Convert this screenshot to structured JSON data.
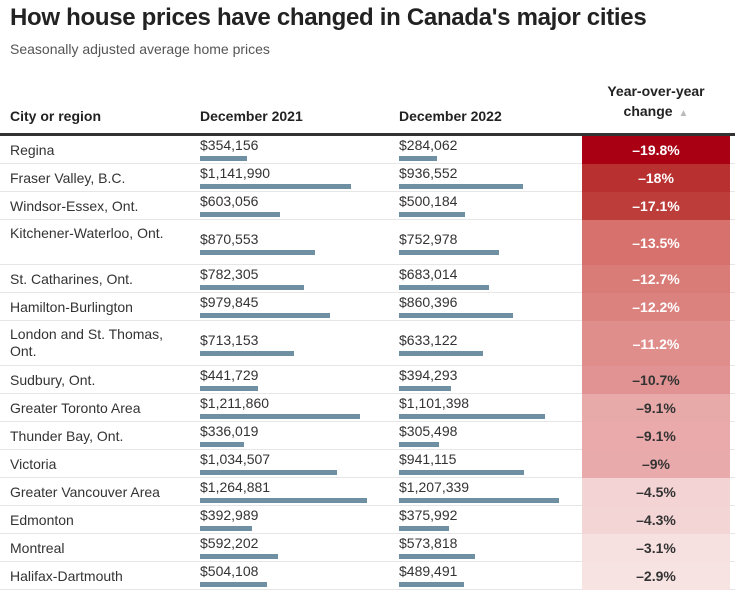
{
  "title": "How house prices have changed in Canada's major cities",
  "subtitle": "Seasonally adjusted average home prices",
  "columns": {
    "city": "City or region",
    "dec2021": "December 2021",
    "dec2022": "December 2022",
    "change_line1": "Year-over-year",
    "change_line2": "change",
    "sort_icon": "▲"
  },
  "colors": {
    "bar": "#6f8fa3",
    "change_scale_dark": "#a90014",
    "change_scale_light": "#f8e4e4"
  },
  "chart_data": {
    "type": "table",
    "title": "How house prices have changed in Canada's major cities",
    "subtitle": "Seasonally adjusted average home prices",
    "columns": [
      "City or region",
      "December 2021",
      "December 2022",
      "Year-over-year change"
    ],
    "sorted_by": "Year-over-year change (ascending)",
    "bar_max": 1270000,
    "rows": [
      {
        "city": "Regina",
        "dec2021": 354156,
        "dec2021_label": "$354,156",
        "dec2022": 284062,
        "dec2022_label": "$284,062",
        "change": -19.8,
        "change_label": "–19.8%",
        "color": "#a90014",
        "text_color": "#ffffff"
      },
      {
        "city": "Fraser Valley, B.C.",
        "dec2021": 1141990,
        "dec2021_label": "$1,141,990",
        "dec2022": 936552,
        "dec2022_label": "$936,552",
        "change": -18,
        "change_label": "–18%",
        "color": "#b8302f",
        "text_color": "#ffffff"
      },
      {
        "city": "Windsor-Essex, Ont.",
        "dec2021": 603056,
        "dec2021_label": "$603,056",
        "dec2022": 500184,
        "dec2022_label": "$500,184",
        "change": -17.1,
        "change_label": "–17.1%",
        "color": "#bd3d3b",
        "text_color": "#ffffff"
      },
      {
        "city": "Kitchener-Waterloo, Ont.",
        "dec2021": 870553,
        "dec2021_label": "$870,553",
        "dec2022": 752978,
        "dec2022_label": "$752,978",
        "change": -13.5,
        "change_label": "–13.5%",
        "color": "#d6716d",
        "text_color": "#ffffff"
      },
      {
        "city": "St. Catharines, Ont.",
        "dec2021": 782305,
        "dec2021_label": "$782,305",
        "dec2022": 683014,
        "dec2022_label": "$683,014",
        "change": -12.7,
        "change_label": "–12.7%",
        "color": "#d97b77",
        "text_color": "#ffffff"
      },
      {
        "city": "Hamilton-Burlington",
        "dec2021": 979845,
        "dec2021_label": "$979,845",
        "dec2022": 860396,
        "dec2022_label": "$860,396",
        "change": -12.2,
        "change_label": "–12.2%",
        "color": "#db827f",
        "text_color": "#ffffff"
      },
      {
        "city": "London and St. Thomas, Ont.",
        "dec2021": 713153,
        "dec2021_label": "$713,153",
        "dec2022": 633122,
        "dec2022_label": "$633,122",
        "change": -11.2,
        "change_label": "–11.2%",
        "color": "#df8e8c",
        "text_color": "#ffffff"
      },
      {
        "city": "Sudbury, Ont.",
        "dec2021": 441729,
        "dec2021_label": "$441,729",
        "dec2022": 394293,
        "dec2022_label": "$394,293",
        "change": -10.7,
        "change_label": "–10.7%",
        "color": "#e19393",
        "text_color": "#333333"
      },
      {
        "city": "Greater Toronto Area",
        "dec2021": 1211860,
        "dec2021_label": "$1,211,860",
        "dec2022": 1101398,
        "dec2022_label": "$1,101,398",
        "change": -9.1,
        "change_label": "–9.1%",
        "color": "#e8a9a9",
        "text_color": "#333333"
      },
      {
        "city": "Thunder Bay, Ont.",
        "dec2021": 336019,
        "dec2021_label": "$336,019",
        "dec2022": 305498,
        "dec2022_label": "$305,498",
        "change": -9.1,
        "change_label": "–9.1%",
        "color": "#eaa9aa",
        "text_color": "#333333"
      },
      {
        "city": "Victoria",
        "dec2021": 1034507,
        "dec2021_label": "$1,034,507",
        "dec2022": 941115,
        "dec2022_label": "$941,115",
        "change": -9,
        "change_label": "–9%",
        "color": "#e8aaaa",
        "text_color": "#333333"
      },
      {
        "city": "Greater Vancouver Area",
        "dec2021": 1264881,
        "dec2021_label": "$1,264,881",
        "dec2022": 1207339,
        "dec2022_label": "$1,207,339",
        "change": -4.5,
        "change_label": "–4.5%",
        "color": "#f4d3d4",
        "text_color": "#333333"
      },
      {
        "city": "Edmonton",
        "dec2021": 392989,
        "dec2021_label": "$392,989",
        "dec2022": 375992,
        "dec2022_label": "$375,992",
        "change": -4.3,
        "change_label": "–4.3%",
        "color": "#f4d5d6",
        "text_color": "#333333"
      },
      {
        "city": "Montreal",
        "dec2021": 592202,
        "dec2021_label": "$592,202",
        "dec2022": 573818,
        "dec2022_label": "$573,818",
        "change": -3.1,
        "change_label": "–3.1%",
        "color": "#f7e0e0",
        "text_color": "#333333"
      },
      {
        "city": "Halifax-Dartmouth",
        "dec2021": 504108,
        "dec2021_label": "$504,108",
        "dec2022": 489491,
        "dec2022_label": "$489,491",
        "change": -2.9,
        "change_label": "–2.9%",
        "color": "#f8e3e3",
        "text_color": "#333333"
      }
    ]
  }
}
